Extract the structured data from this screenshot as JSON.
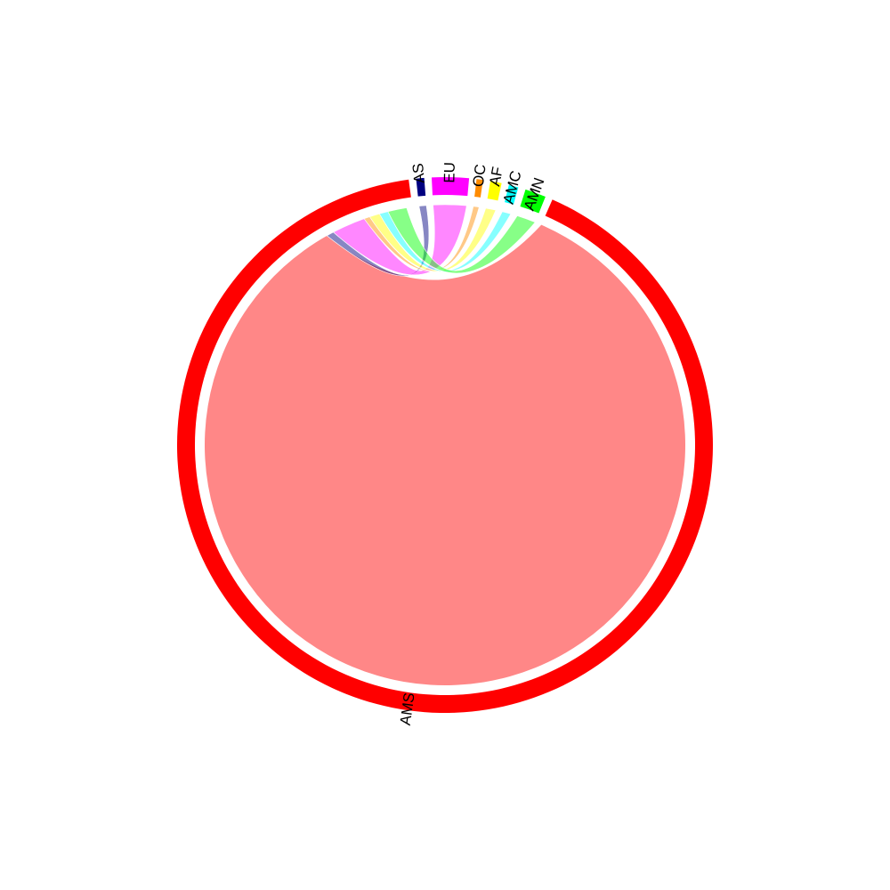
{
  "chart_data": {
    "type": "chord",
    "title": "",
    "sectors": [
      {
        "key": "AS",
        "label": "AS",
        "color": "#000080",
        "value": 0.5
      },
      {
        "key": "EU",
        "label": "EU",
        "color": "#ff00ff",
        "value": 2.3
      },
      {
        "key": "OC",
        "label": "OC",
        "color": "#ff8c00",
        "value": 0.4
      },
      {
        "key": "AF",
        "label": "AF",
        "color": "#ffff00",
        "value": 0.7
      },
      {
        "key": "AMC",
        "label": "AMC",
        "color": "#00ffff",
        "value": 0.6
      },
      {
        "key": "AMN",
        "label": "AMN",
        "color": "#00ff00",
        "value": 1.3
      },
      {
        "key": "AMS",
        "label": "AMS",
        "color": "#ff0000",
        "value": 94.2
      }
    ],
    "links": [
      {
        "from": "AMS",
        "to": "AMS",
        "value": 88.0
      },
      {
        "from": "AS",
        "to": "AMS",
        "value": 0.5
      },
      {
        "from": "EU",
        "to": "AMS",
        "value": 2.3
      },
      {
        "from": "OC",
        "to": "AMS",
        "value": 0.4
      },
      {
        "from": "AF",
        "to": "AMS",
        "value": 0.7
      },
      {
        "from": "AMC",
        "to": "AMS",
        "value": 0.6
      },
      {
        "from": "AMN",
        "to": "AMS",
        "value": 1.3
      }
    ]
  }
}
